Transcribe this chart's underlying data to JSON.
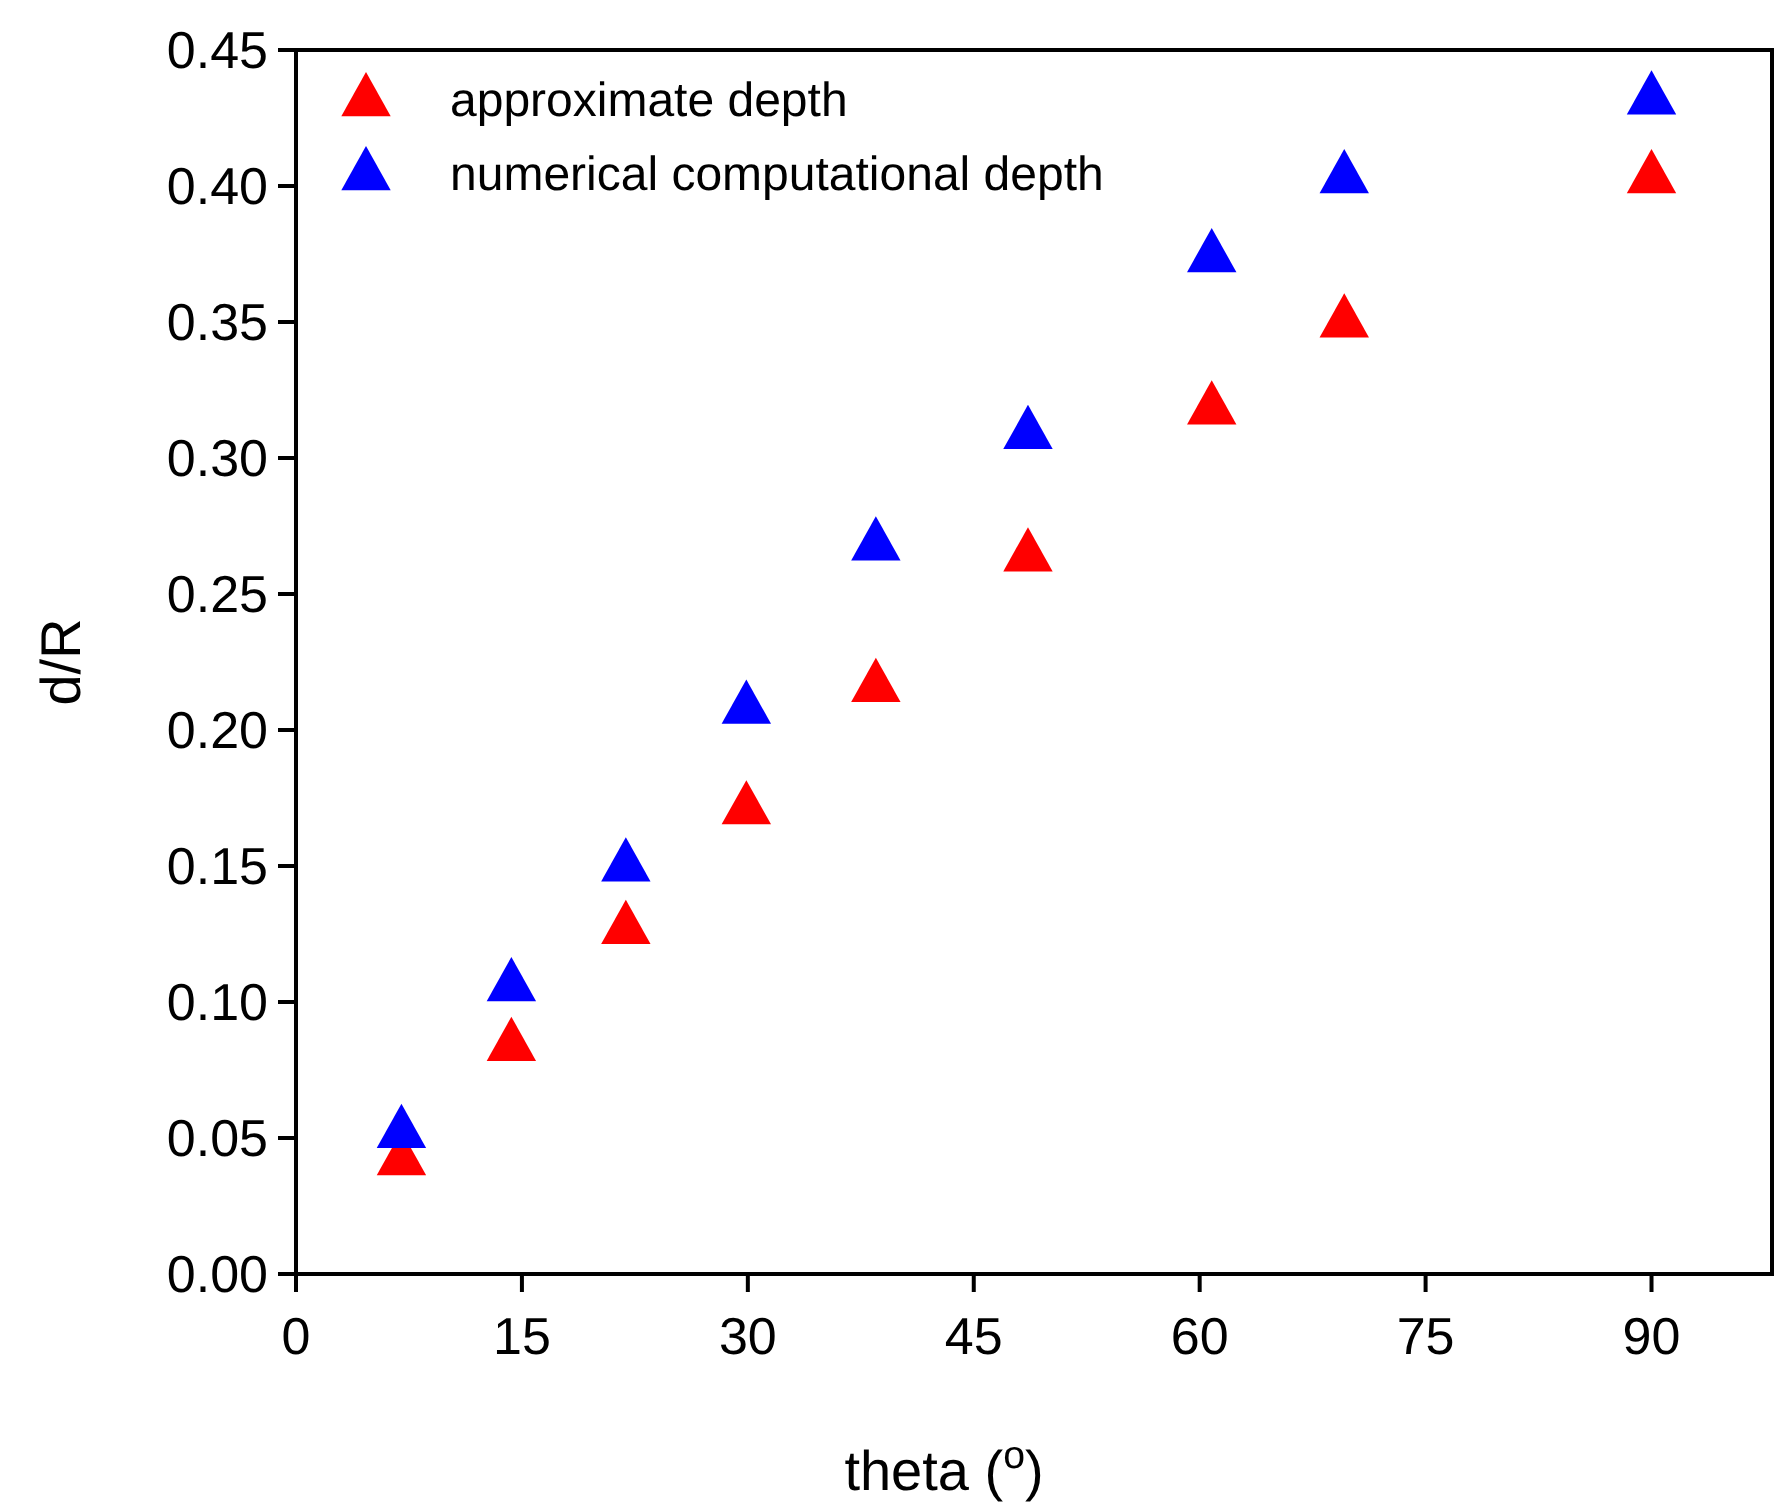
{
  "chart_data": {
    "type": "scatter",
    "xlabel": "theta ($^{o}$)",
    "ylabel": "d/R",
    "marker": "triangle",
    "legend": "top left",
    "grid": false,
    "xlim": [
      0,
      98
    ],
    "xticks": [
      0,
      15,
      30,
      45,
      60,
      75,
      90
    ],
    "ylim": [
      0,
      0.45
    ],
    "yticks": [
      {
        "value": 0,
        "label": "0.00"
      },
      0.05,
      {
        "value": 0.1,
        "label": "0.10"
      },
      0.15,
      {
        "value": 0.2,
        "label": "0.20"
      },
      0.25,
      {
        "value": 0.3,
        "label": "0.30"
      },
      0.35,
      {
        "value": 0.4,
        "label": "0.40"
      },
      0.45
    ],
    "x": [
      7,
      14.3,
      21.9,
      29.9,
      38.5,
      48.6,
      60.8,
      69.6,
      90
    ],
    "series": [
      {
        "name": "approximate depth",
        "color": "#ff0000",
        "values": [
          0.043,
          0.085,
          0.128,
          0.172,
          0.217,
          0.265,
          0.319,
          0.351,
          0.404
        ]
      },
      {
        "name": "numerical computational depth",
        "color": "#0000ff",
        "values": [
          0.053,
          0.107,
          0.151,
          0.209,
          0.269,
          0.31,
          0.375,
          0.404,
          0.433
        ]
      }
    ]
  }
}
